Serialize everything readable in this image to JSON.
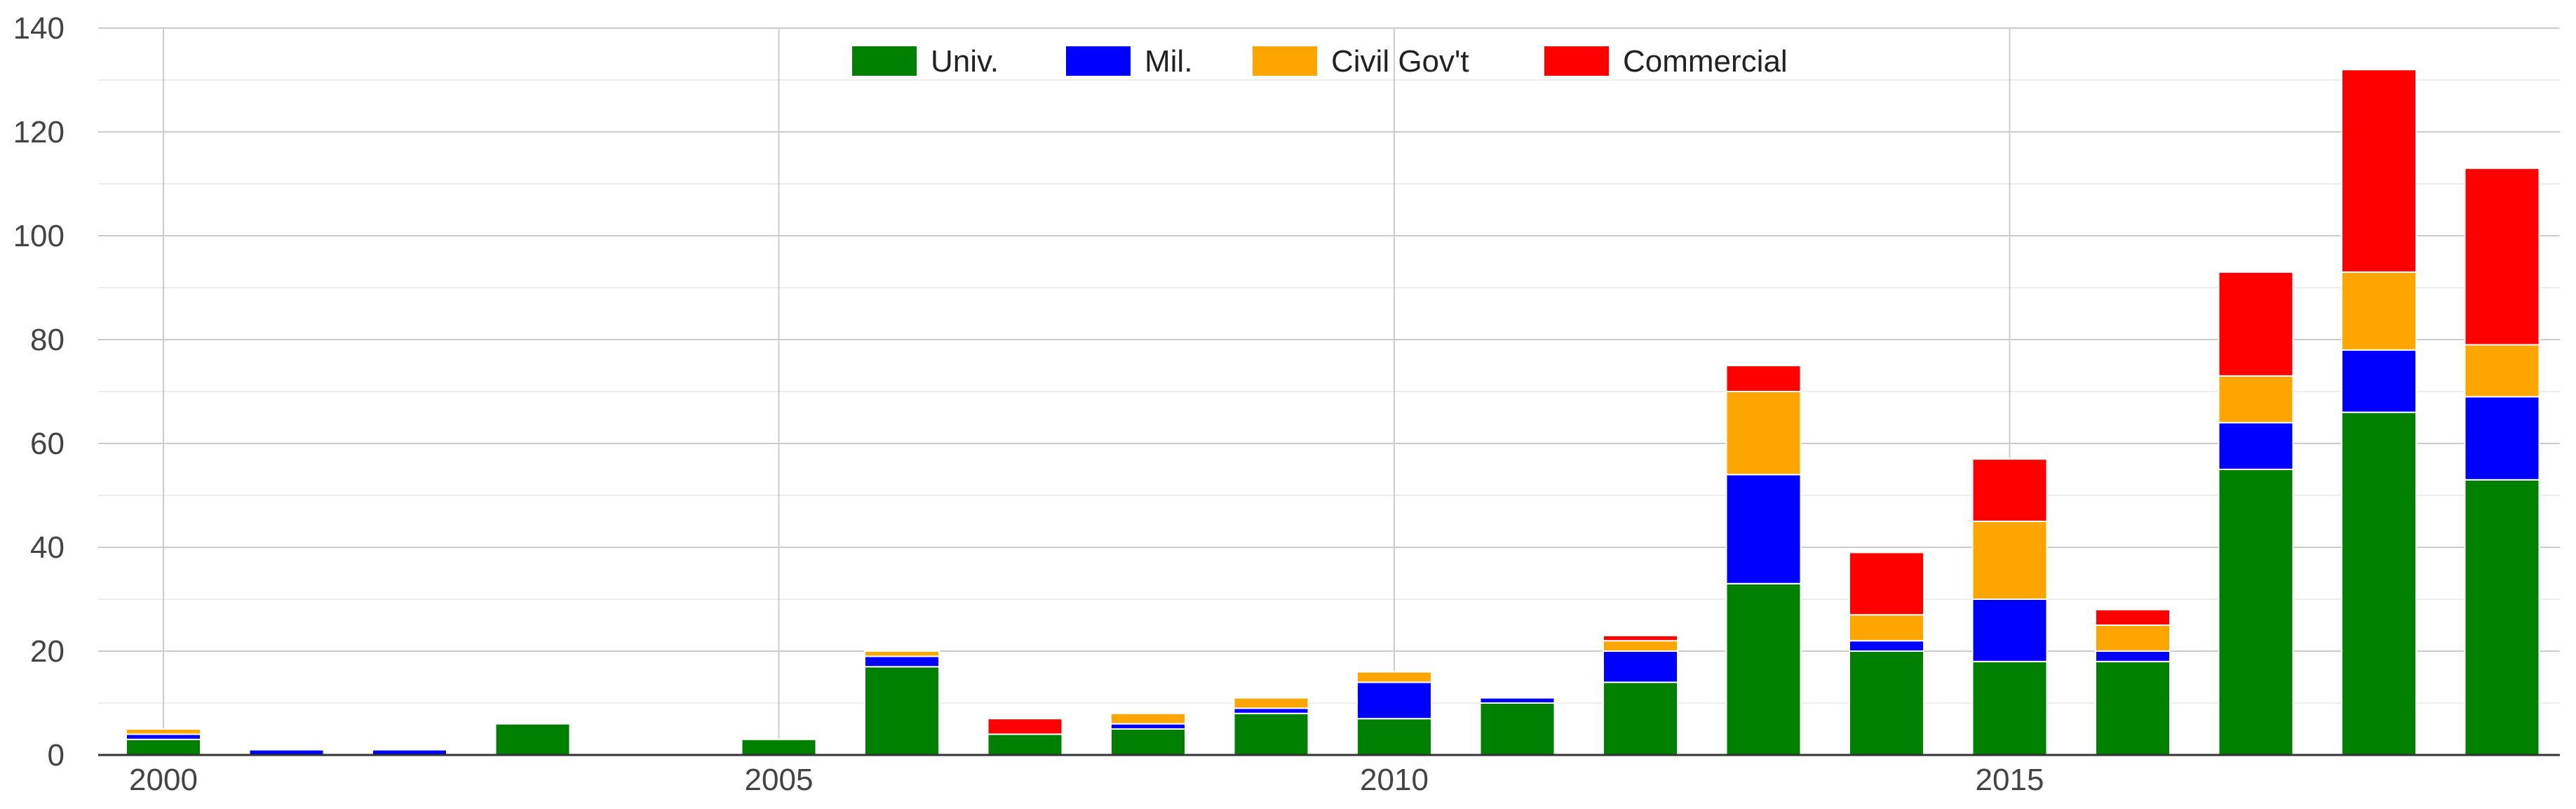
{
  "chart_data": {
    "type": "bar",
    "stacked": true,
    "title": "",
    "xlabel": "",
    "ylabel": "",
    "x": [
      2000,
      2001,
      2002,
      2003,
      2004,
      2005,
      2006,
      2007,
      2008,
      2009,
      2010,
      2011,
      2012,
      2013,
      2014,
      2015,
      2016,
      2017,
      2018,
      2019
    ],
    "xticks": [
      {
        "value": 2000,
        "label": "2000"
      },
      {
        "value": 2005,
        "label": "2005"
      },
      {
        "value": 2010,
        "label": "2010"
      },
      {
        "value": 2015,
        "label": "2015"
      }
    ],
    "xlim": [
      2000,
      2020
    ],
    "ylim": [
      0,
      140
    ],
    "yticks": [
      {
        "value": 0,
        "label": "0"
      },
      {
        "value": 20,
        "label": "20"
      },
      {
        "value": 40,
        "label": "40"
      },
      {
        "value": 60,
        "label": "60"
      },
      {
        "value": 80,
        "label": "80"
      },
      {
        "value": 100,
        "label": "100"
      },
      {
        "value": 120,
        "label": "120"
      },
      {
        "value": 140,
        "label": "140"
      }
    ],
    "grid": true,
    "minor_grid": true,
    "legend_position": "top-center",
    "series": [
      {
        "name": "Univ.",
        "color": "#008000",
        "values": [
          3,
          0,
          0,
          6,
          0,
          3,
          17,
          4,
          5,
          8,
          7,
          10,
          14,
          33,
          20,
          18,
          18,
          55,
          66,
          53
        ]
      },
      {
        "name": "Mil.",
        "color": "#0000FF",
        "values": [
          1,
          1,
          1,
          0,
          0,
          0,
          2,
          0,
          1,
          1,
          7,
          1,
          6,
          21,
          2,
          12,
          2,
          9,
          12,
          16
        ]
      },
      {
        "name": "Civil Gov't",
        "color": "#FFA500",
        "values": [
          1,
          0,
          0,
          0,
          0,
          0,
          1,
          0,
          2,
          2,
          2,
          0,
          2,
          16,
          5,
          15,
          5,
          9,
          15,
          10
        ]
      },
      {
        "name": "Commercial",
        "color": "#FF0000",
        "values": [
          0,
          0,
          0,
          0,
          0,
          0,
          0,
          3,
          0,
          0,
          0,
          0,
          1,
          5,
          12,
          12,
          3,
          20,
          39,
          34
        ]
      }
    ]
  }
}
